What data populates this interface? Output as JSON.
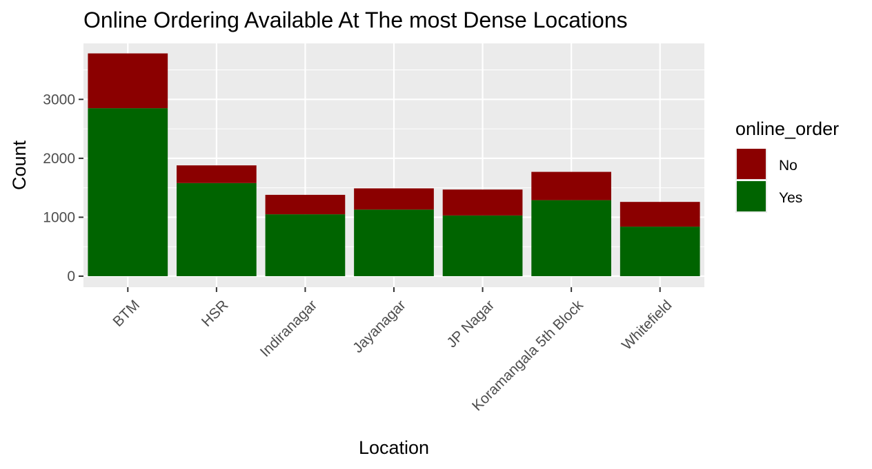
{
  "chart_data": {
    "type": "bar",
    "stacked": true,
    "title": "Online Ordering Available At The most Dense Locations",
    "xlabel": "Location",
    "ylabel": "Count",
    "categories": [
      "BTM",
      "HSR",
      "Indiranagar",
      "Jayanagar",
      "JP Nagar",
      "Koramangala 5th Block",
      "Whitefield"
    ],
    "series": [
      {
        "name": "Yes",
        "color": "#006400",
        "values": [
          2850,
          1580,
          1050,
          1130,
          1030,
          1290,
          840
        ]
      },
      {
        "name": "No",
        "color": "#8B0000",
        "values": [
          930,
          300,
          330,
          360,
          440,
          480,
          420
        ]
      }
    ],
    "ylim": [
      0,
      3950
    ],
    "yticks": [
      0,
      1000,
      2000,
      3000
    ],
    "ytick_labels": [
      "0",
      "1000",
      "2000",
      "3000"
    ],
    "grid": true,
    "legend": {
      "title": "online_order",
      "placement": "right",
      "entries": [
        {
          "label": "No",
          "color": "#8B0000"
        },
        {
          "label": "Yes",
          "color": "#006400"
        }
      ]
    }
  }
}
